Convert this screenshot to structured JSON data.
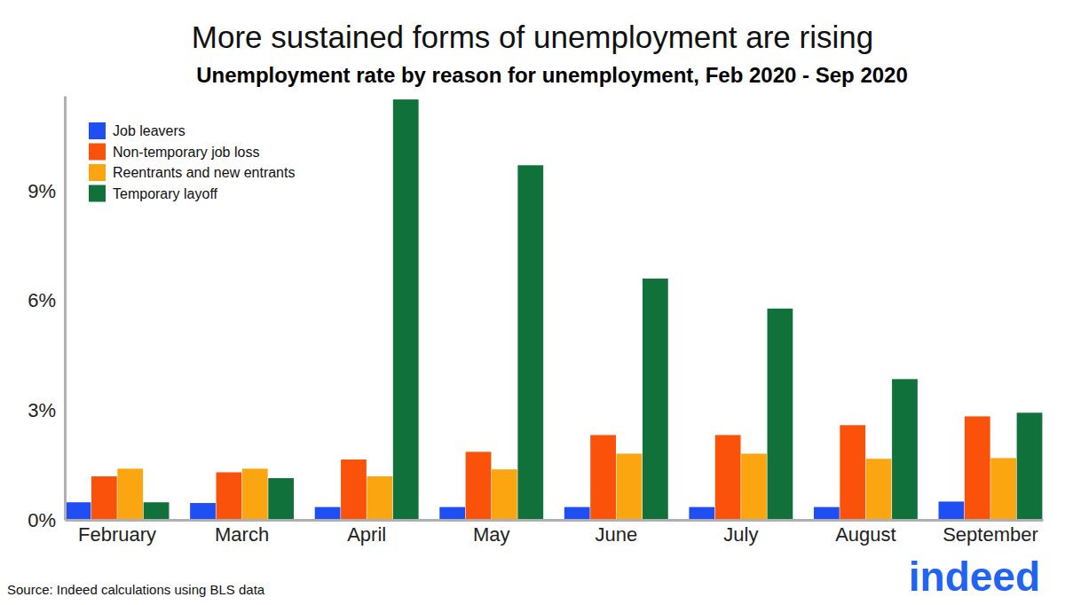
{
  "chart_data": {
    "type": "bar",
    "title": "More sustained forms of unemployment are rising",
    "subtitle": "Unemployment rate by reason for unemployment, Feb 2020 - Sep 2020",
    "source": "Source: Indeed calculations using BLS data",
    "logo": "indeed",
    "categories": [
      "February",
      "March",
      "April",
      "May",
      "June",
      "July",
      "August",
      "September"
    ],
    "series": [
      {
        "name": "Job leavers",
        "color": "#1f4ff2",
        "values": [
          0.48,
          0.46,
          0.35,
          0.35,
          0.35,
          0.35,
          0.35,
          0.5
        ]
      },
      {
        "name": "Non-temporary job loss",
        "color": "#fa520a",
        "values": [
          1.19,
          1.3,
          1.65,
          1.86,
          2.32,
          2.32,
          2.59,
          2.83
        ]
      },
      {
        "name": "Reentrants and new entrants",
        "color": "#fba610",
        "values": [
          1.4,
          1.4,
          1.19,
          1.38,
          1.81,
          1.81,
          1.67,
          1.69
        ]
      },
      {
        "name": "Temporary layoff",
        "color": "#10723a",
        "values": [
          0.48,
          1.14,
          11.5,
          9.7,
          6.6,
          5.78,
          3.85,
          2.93
        ]
      }
    ],
    "ylim": [
      0,
      11.6
    ],
    "yticks": [
      {
        "value": 0,
        "label": "0%"
      },
      {
        "value": 3,
        "label": "3%"
      },
      {
        "value": 6,
        "label": "6%"
      },
      {
        "value": 9,
        "label": "9%"
      }
    ],
    "grid": false,
    "legend": "top-left"
  }
}
